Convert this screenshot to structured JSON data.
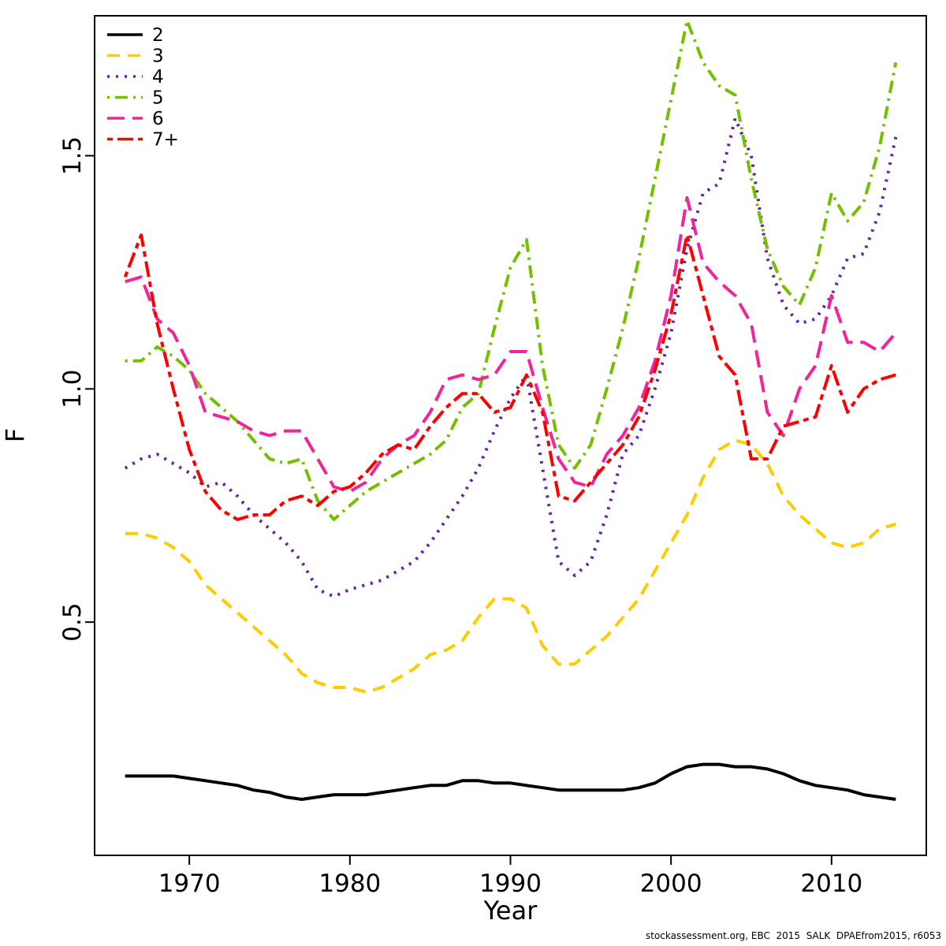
{
  "chart_data": {
    "type": "line",
    "title": "",
    "xlabel": "Year",
    "ylabel": "F",
    "caption": "stockassessment.org, EBC  2015  SALK  DPAEfrom2015, r6053",
    "legend_position": "top-left",
    "grid": false,
    "xlim": [
      1964.1,
      2015.9
    ],
    "ylim": [
      0.0,
      1.8
    ],
    "x_ticks": [
      1970,
      1980,
      1990,
      2000,
      2010
    ],
    "x_tick_labels": [
      "1970",
      "1980",
      "1990",
      "2000",
      "2010"
    ],
    "y_ticks": [
      0.5,
      1.0,
      1.5
    ],
    "y_tick_labels": [
      "0.5",
      "1.0",
      "1.5"
    ],
    "x": [
      1966,
      1967,
      1968,
      1969,
      1970,
      1971,
      1972,
      1973,
      1974,
      1975,
      1976,
      1977,
      1978,
      1979,
      1980,
      1981,
      1982,
      1983,
      1984,
      1985,
      1986,
      1987,
      1988,
      1989,
      1990,
      1991,
      1992,
      1993,
      1994,
      1995,
      1996,
      1997,
      1998,
      1999,
      2000,
      2001,
      2002,
      2003,
      2004,
      2005,
      2006,
      2007,
      2008,
      2009,
      2010,
      2011,
      2012,
      2013,
      2014
    ],
    "series": [
      {
        "name": "2",
        "color": "#000000",
        "linetype": "solid",
        "values": [
          0.17,
          0.17,
          0.17,
          0.17,
          0.165,
          0.16,
          0.155,
          0.15,
          0.14,
          0.135,
          0.125,
          0.12,
          0.125,
          0.13,
          0.13,
          0.13,
          0.135,
          0.14,
          0.145,
          0.15,
          0.15,
          0.16,
          0.16,
          0.155,
          0.155,
          0.15,
          0.145,
          0.14,
          0.14,
          0.14,
          0.14,
          0.14,
          0.145,
          0.155,
          0.175,
          0.19,
          0.195,
          0.195,
          0.19,
          0.19,
          0.185,
          0.175,
          0.16,
          0.15,
          0.145,
          0.14,
          0.13,
          0.125,
          0.12
        ]
      },
      {
        "name": "3",
        "color": "#FFCC00",
        "linetype": "dashed",
        "values": [
          0.69,
          0.69,
          0.68,
          0.66,
          0.63,
          0.58,
          0.55,
          0.52,
          0.49,
          0.46,
          0.43,
          0.39,
          0.37,
          0.36,
          0.36,
          0.35,
          0.36,
          0.38,
          0.4,
          0.43,
          0.44,
          0.46,
          0.51,
          0.55,
          0.55,
          0.53,
          0.45,
          0.41,
          0.41,
          0.44,
          0.47,
          0.51,
          0.55,
          0.61,
          0.67,
          0.73,
          0.81,
          0.87,
          0.89,
          0.88,
          0.84,
          0.77,
          0.73,
          0.7,
          0.67,
          0.66,
          0.67,
          0.7,
          0.71
        ]
      },
      {
        "name": "4",
        "color": "#6420AA",
        "linetype": "dotted",
        "values": [
          0.83,
          0.85,
          0.86,
          0.84,
          0.82,
          0.79,
          0.8,
          0.77,
          0.73,
          0.7,
          0.67,
          0.63,
          0.57,
          0.555,
          0.57,
          0.58,
          0.59,
          0.61,
          0.63,
          0.67,
          0.72,
          0.77,
          0.83,
          0.91,
          0.98,
          1.03,
          0.83,
          0.63,
          0.6,
          0.63,
          0.73,
          0.86,
          0.9,
          1.0,
          1.12,
          1.3,
          1.42,
          1.44,
          1.58,
          1.5,
          1.28,
          1.18,
          1.14,
          1.15,
          1.2,
          1.28,
          1.29,
          1.38,
          1.54
        ]
      },
      {
        "name": "5",
        "color": "#73C000",
        "linetype": "dotdash",
        "values": [
          1.06,
          1.06,
          1.09,
          1.07,
          1.04,
          0.99,
          0.96,
          0.93,
          0.89,
          0.85,
          0.84,
          0.85,
          0.76,
          0.72,
          0.75,
          0.78,
          0.8,
          0.82,
          0.84,
          0.86,
          0.89,
          0.96,
          0.99,
          1.13,
          1.26,
          1.32,
          1.05,
          0.88,
          0.83,
          0.88,
          1.0,
          1.13,
          1.28,
          1.45,
          1.62,
          1.79,
          1.7,
          1.65,
          1.63,
          1.45,
          1.3,
          1.22,
          1.18,
          1.26,
          1.42,
          1.36,
          1.4,
          1.52,
          1.7
        ]
      },
      {
        "name": "6",
        "color": "#F0259C",
        "linetype": "longdash",
        "values": [
          1.23,
          1.24,
          1.15,
          1.12,
          1.05,
          0.95,
          0.94,
          0.93,
          0.91,
          0.9,
          0.91,
          0.91,
          0.85,
          0.79,
          0.78,
          0.8,
          0.85,
          0.88,
          0.9,
          0.95,
          1.02,
          1.03,
          1.02,
          1.03,
          1.08,
          1.08,
          0.96,
          0.85,
          0.8,
          0.79,
          0.86,
          0.9,
          0.96,
          1.06,
          1.2,
          1.41,
          1.27,
          1.23,
          1.2,
          1.14,
          0.95,
          0.9,
          1.0,
          1.05,
          1.2,
          1.1,
          1.1,
          1.08,
          1.12
        ]
      },
      {
        "name": "7+",
        "color": "#FF0000",
        "linetype": "twodash",
        "values": [
          1.24,
          1.33,
          1.14,
          1.0,
          0.87,
          0.78,
          0.74,
          0.72,
          0.73,
          0.73,
          0.76,
          0.77,
          0.75,
          0.78,
          0.79,
          0.82,
          0.86,
          0.88,
          0.87,
          0.92,
          0.96,
          0.99,
          0.99,
          0.95,
          0.96,
          1.03,
          0.95,
          0.77,
          0.76,
          0.8,
          0.84,
          0.88,
          0.94,
          1.04,
          1.16,
          1.33,
          1.2,
          1.07,
          1.03,
          0.85,
          0.85,
          0.92,
          0.93,
          0.94,
          1.05,
          0.95,
          1.0,
          1.02,
          1.03
        ]
      }
    ]
  }
}
